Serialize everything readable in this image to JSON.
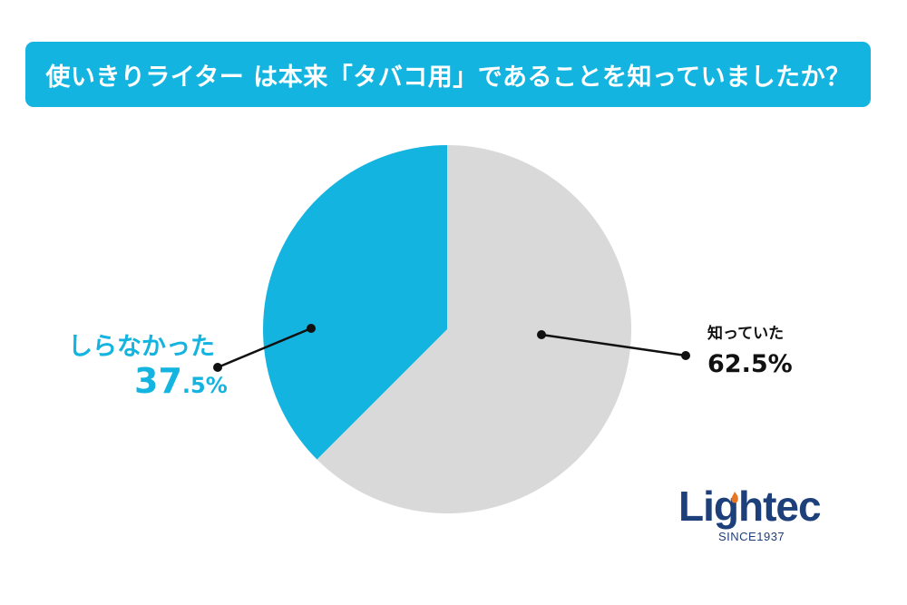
{
  "chart_data": {
    "type": "pie",
    "title": "使いきりライター は本来「タバコ用」であることを知っていましたか？",
    "slices": [
      {
        "label": "知っていた",
        "value": 62.5,
        "value_label": "62.5%",
        "color": "#d9d9d9"
      },
      {
        "label": "しらなかった",
        "value": 37.5,
        "value_label_major": "37",
        "value_label_minor": ".5%",
        "color": "#14b4e0"
      }
    ],
    "start_angle": "top",
    "direction": "clockwise"
  },
  "colors": {
    "accent": "#14b4e0",
    "slice_gray": "#d9d9d9",
    "brand_navy": "#1d3f7a",
    "brand_orange": "#e8761f"
  },
  "logo": {
    "name": "Lightec",
    "tagline": "SINCE1937"
  }
}
